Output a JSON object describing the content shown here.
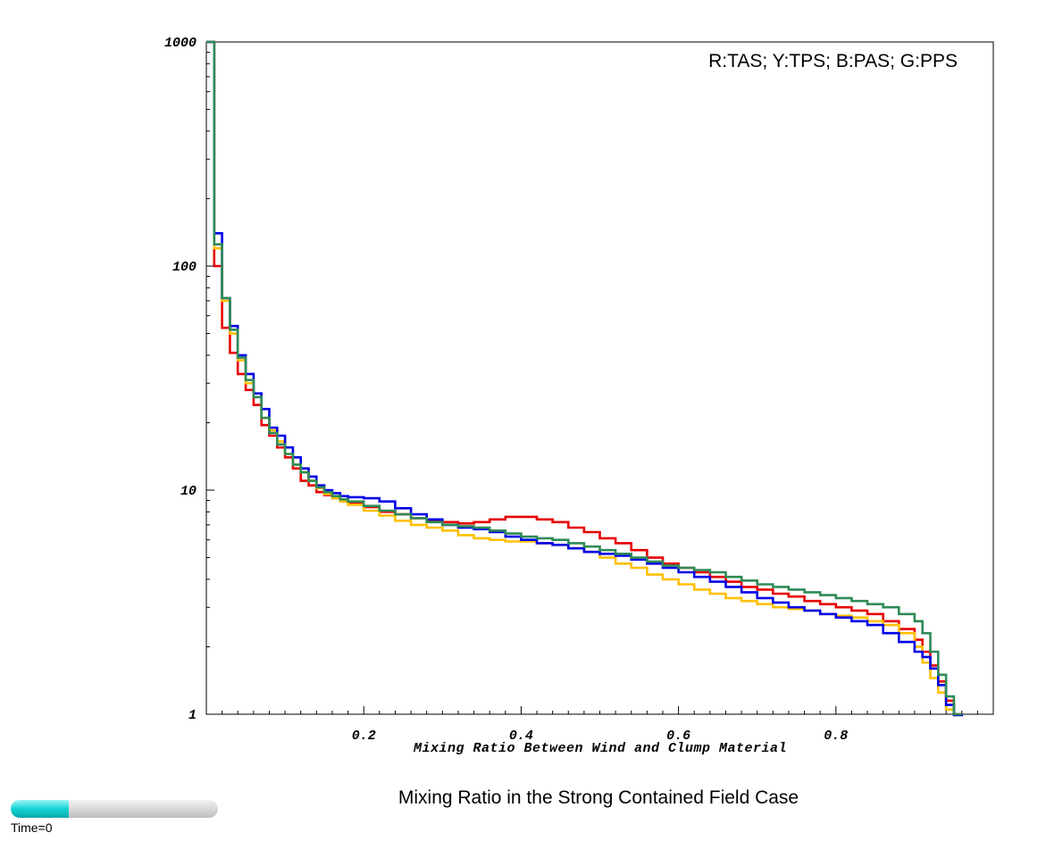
{
  "chart_data": {
    "type": "line",
    "style": "step histogram",
    "title": "Mixing Ratio in the Strong Contained Field Case",
    "xlabel": "Mixing Ratio Between Wind and Clump Material",
    "ylabel": "",
    "legend_text": "R:TAS; Y:TPS; B:PAS; G:PPS",
    "legend_placement": "top-right",
    "xlim": [
      0,
      1
    ],
    "ylim": [
      1,
      1000
    ],
    "yscale": "log",
    "grid": false,
    "x_ticks": [
      "0.2",
      "0.4",
      "0.6",
      "0.8"
    ],
    "y_ticks": [
      "1",
      "10",
      "100",
      "1000"
    ],
    "bin_width": 0.01,
    "series": [
      {
        "name": "TAS",
        "color": "#e60000",
        "x": [
          0.0,
          0.01,
          0.02,
          0.03,
          0.04,
          0.05,
          0.06,
          0.07,
          0.08,
          0.09,
          0.1,
          0.11,
          0.12,
          0.13,
          0.14,
          0.15,
          0.16,
          0.17,
          0.18,
          0.2,
          0.22,
          0.24,
          0.26,
          0.28,
          0.3,
          0.32,
          0.34,
          0.36,
          0.38,
          0.4,
          0.42,
          0.44,
          0.46,
          0.48,
          0.5,
          0.52,
          0.54,
          0.56,
          0.58,
          0.6,
          0.62,
          0.64,
          0.66,
          0.68,
          0.7,
          0.72,
          0.74,
          0.76,
          0.78,
          0.8,
          0.82,
          0.84,
          0.86,
          0.88,
          0.9,
          0.91,
          0.92,
          0.93,
          0.94,
          0.95
        ],
        "values": [
          1000,
          100,
          53,
          41,
          33,
          28,
          24,
          19.5,
          17.5,
          15.5,
          14,
          12.5,
          11,
          10.5,
          9.8,
          9.5,
          9.2,
          9.0,
          8.8,
          8.4,
          8.0,
          7.8,
          7.5,
          7.3,
          7.2,
          7.1,
          7.2,
          7.4,
          7.6,
          7.6,
          7.4,
          7.2,
          6.8,
          6.5,
          6.1,
          5.8,
          5.4,
          5.0,
          4.7,
          4.5,
          4.3,
          4.1,
          3.9,
          3.7,
          3.6,
          3.45,
          3.35,
          3.2,
          3.1,
          3.0,
          2.9,
          2.8,
          2.6,
          2.4,
          2.15,
          1.9,
          1.65,
          1.4,
          1.15,
          1.0
        ]
      },
      {
        "name": "TPS",
        "color": "#ffc000",
        "x": [
          0.0,
          0.01,
          0.02,
          0.03,
          0.04,
          0.05,
          0.06,
          0.07,
          0.08,
          0.09,
          0.1,
          0.11,
          0.12,
          0.13,
          0.14,
          0.15,
          0.16,
          0.17,
          0.18,
          0.2,
          0.22,
          0.24,
          0.26,
          0.28,
          0.3,
          0.32,
          0.34,
          0.36,
          0.38,
          0.4,
          0.42,
          0.44,
          0.46,
          0.48,
          0.5,
          0.52,
          0.54,
          0.56,
          0.58,
          0.6,
          0.62,
          0.64,
          0.66,
          0.68,
          0.7,
          0.72,
          0.74,
          0.76,
          0.78,
          0.8,
          0.82,
          0.84,
          0.86,
          0.88,
          0.9,
          0.91,
          0.92,
          0.93,
          0.94,
          0.95
        ],
        "values": [
          1000,
          120,
          70,
          50,
          38,
          30,
          26,
          21,
          18.5,
          16.5,
          14.5,
          13,
          12,
          11,
          10.2,
          9.6,
          9.2,
          8.9,
          8.6,
          8.1,
          7.7,
          7.3,
          7.0,
          6.8,
          6.6,
          6.3,
          6.1,
          6.0,
          5.9,
          5.9,
          5.8,
          5.7,
          5.5,
          5.3,
          5.0,
          4.7,
          4.5,
          4.2,
          4.0,
          3.8,
          3.6,
          3.45,
          3.3,
          3.2,
          3.1,
          3.0,
          2.95,
          2.9,
          2.8,
          2.75,
          2.7,
          2.6,
          2.5,
          2.3,
          2.0,
          1.7,
          1.45,
          1.25,
          1.05,
          0.95
        ]
      },
      {
        "name": "PAS",
        "color": "#0000e6",
        "x": [
          0.0,
          0.01,
          0.02,
          0.03,
          0.04,
          0.05,
          0.06,
          0.07,
          0.08,
          0.09,
          0.1,
          0.11,
          0.12,
          0.13,
          0.14,
          0.15,
          0.16,
          0.17,
          0.18,
          0.2,
          0.22,
          0.24,
          0.26,
          0.28,
          0.3,
          0.32,
          0.34,
          0.36,
          0.38,
          0.4,
          0.42,
          0.44,
          0.46,
          0.48,
          0.5,
          0.52,
          0.54,
          0.56,
          0.58,
          0.6,
          0.62,
          0.64,
          0.66,
          0.68,
          0.7,
          0.72,
          0.74,
          0.76,
          0.78,
          0.8,
          0.82,
          0.84,
          0.86,
          0.88,
          0.9,
          0.91,
          0.92,
          0.93,
          0.94,
          0.95
        ],
        "values": [
          1000,
          140,
          72,
          54,
          40,
          33,
          27,
          23,
          19,
          17.5,
          15.5,
          14,
          12.5,
          11.5,
          10.5,
          10.0,
          9.7,
          9.4,
          9.3,
          9.2,
          8.9,
          8.3,
          7.8,
          7.4,
          7.0,
          6.8,
          6.7,
          6.5,
          6.2,
          6.0,
          5.8,
          5.7,
          5.5,
          5.3,
          5.2,
          5.1,
          4.9,
          4.7,
          4.5,
          4.3,
          4.1,
          3.9,
          3.7,
          3.5,
          3.3,
          3.15,
          3.0,
          2.9,
          2.8,
          2.7,
          2.6,
          2.5,
          2.3,
          2.1,
          1.9,
          1.8,
          1.6,
          1.35,
          1.1,
          0.95
        ]
      },
      {
        "name": "PPS",
        "color": "#2e8b57",
        "x": [
          0.0,
          0.01,
          0.02,
          0.03,
          0.04,
          0.05,
          0.06,
          0.07,
          0.08,
          0.09,
          0.1,
          0.11,
          0.12,
          0.13,
          0.14,
          0.15,
          0.16,
          0.17,
          0.18,
          0.2,
          0.22,
          0.24,
          0.26,
          0.28,
          0.3,
          0.32,
          0.34,
          0.36,
          0.38,
          0.4,
          0.42,
          0.44,
          0.46,
          0.48,
          0.5,
          0.52,
          0.54,
          0.56,
          0.58,
          0.6,
          0.62,
          0.64,
          0.66,
          0.68,
          0.7,
          0.72,
          0.74,
          0.76,
          0.78,
          0.8,
          0.82,
          0.84,
          0.86,
          0.88,
          0.9,
          0.91,
          0.92,
          0.93,
          0.94,
          0.95
        ],
        "values": [
          1000,
          125,
          72,
          52,
          39,
          31,
          26,
          21,
          18,
          16,
          14.5,
          13,
          12,
          11,
          10.3,
          9.8,
          9.4,
          9.1,
          8.9,
          8.5,
          8.1,
          7.8,
          7.5,
          7.2,
          7.0,
          6.9,
          6.8,
          6.6,
          6.4,
          6.2,
          6.1,
          6.0,
          5.8,
          5.6,
          5.4,
          5.2,
          5.0,
          4.8,
          4.6,
          4.5,
          4.4,
          4.3,
          4.1,
          3.95,
          3.8,
          3.7,
          3.6,
          3.5,
          3.4,
          3.3,
          3.2,
          3.1,
          3.0,
          2.8,
          2.6,
          2.3,
          1.9,
          1.5,
          1.2,
          1.0
        ]
      }
    ]
  },
  "slider": {
    "label": "Time=0",
    "position": 0.28
  }
}
